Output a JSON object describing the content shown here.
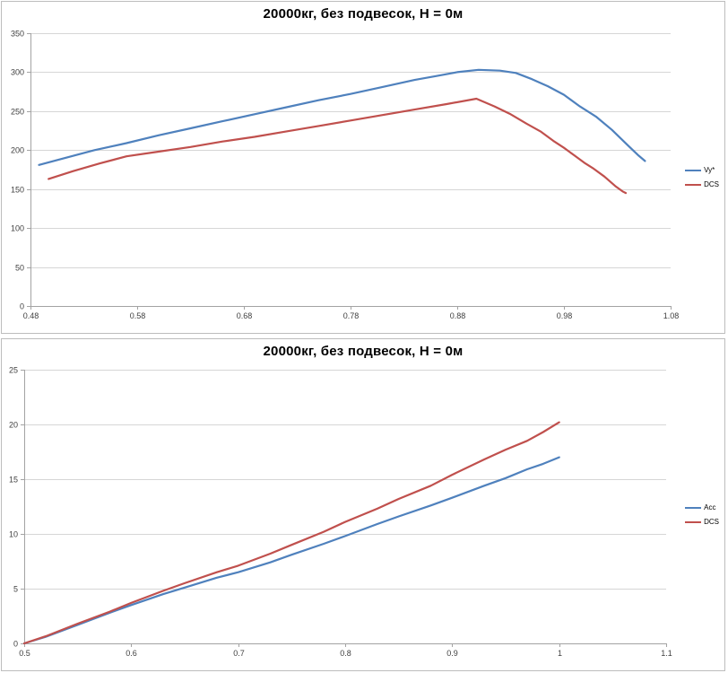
{
  "styles": {
    "gridline": "#d6d6d6",
    "axis": "#a3a3a3",
    "tick_text": "#404040",
    "series_blue": "#4F81BD",
    "series_red": "#C0504D",
    "panel_border": "#bdbdbd",
    "background": "#ffffff"
  },
  "chart_data": [
    {
      "type": "line",
      "title": "20000кг, без подвесок, H = 0м",
      "xlabel": "",
      "ylabel": "",
      "xlim": [
        0.48,
        1.08
      ],
      "ylim": [
        0,
        350
      ],
      "grid": "horizontal",
      "legend_position": "right",
      "xtick_values": [
        0.48,
        0.58,
        0.68,
        0.78,
        0.88,
        0.98,
        1.08
      ],
      "xtick_labels": [
        "0.48",
        "0.58",
        "0.68",
        "0.78",
        "0.88",
        "0.98",
        "1.08"
      ],
      "ytick_values": [
        0,
        50,
        100,
        150,
        200,
        250,
        300,
        350
      ],
      "ytick_labels": [
        "0",
        "50",
        "100",
        "150",
        "200",
        "250",
        "300",
        "350"
      ],
      "series": [
        {
          "name": "Vy*",
          "color": "#4F81BD",
          "points": [
            [
              0.488,
              181
            ],
            [
              0.51,
              189
            ],
            [
              0.54,
              200
            ],
            [
              0.57,
              209
            ],
            [
              0.6,
              219
            ],
            [
              0.63,
              228
            ],
            [
              0.66,
              237
            ],
            [
              0.69,
              246
            ],
            [
              0.72,
              255
            ],
            [
              0.75,
              264
            ],
            [
              0.78,
              272
            ],
            [
              0.81,
              281
            ],
            [
              0.84,
              290
            ],
            [
              0.86,
              295
            ],
            [
              0.88,
              300
            ],
            [
              0.9,
              303
            ],
            [
              0.92,
              302
            ],
            [
              0.935,
              299
            ],
            [
              0.95,
              291
            ],
            [
              0.965,
              282
            ],
            [
              0.98,
              271
            ],
            [
              0.995,
              256
            ],
            [
              1.01,
              243
            ],
            [
              1.025,
              226
            ],
            [
              1.04,
              206
            ],
            [
              1.05,
              193
            ],
            [
              1.056,
              186
            ]
          ]
        },
        {
          "name": "DCS",
          "color": "#C0504D",
          "points": [
            [
              0.497,
              163
            ],
            [
              0.52,
              173
            ],
            [
              0.545,
              183
            ],
            [
              0.57,
              192
            ],
            [
              0.6,
              198
            ],
            [
              0.63,
              204
            ],
            [
              0.66,
              211
            ],
            [
              0.69,
              217
            ],
            [
              0.72,
              224
            ],
            [
              0.75,
              231
            ],
            [
              0.78,
              238
            ],
            [
              0.81,
              245
            ],
            [
              0.84,
              252
            ],
            [
              0.87,
              259
            ],
            [
              0.898,
              266
            ],
            [
              0.915,
              256
            ],
            [
              0.93,
              246
            ],
            [
              0.945,
              234
            ],
            [
              0.958,
              224
            ],
            [
              0.97,
              212
            ],
            [
              0.98,
              203
            ],
            [
              0.99,
              193
            ],
            [
              1.0,
              183
            ],
            [
              1.008,
              176
            ],
            [
              1.018,
              166
            ],
            [
              1.028,
              154
            ],
            [
              1.035,
              147
            ],
            [
              1.038,
              145
            ]
          ]
        }
      ]
    },
    {
      "type": "line",
      "title": "20000кг, без подвесок, H = 0м",
      "xlabel": "",
      "ylabel": "",
      "xlim": [
        0.5,
        1.1
      ],
      "ylim": [
        0,
        25
      ],
      "grid": "horizontal",
      "legend_position": "right",
      "xtick_values": [
        0.5,
        0.6,
        0.7,
        0.8,
        0.9,
        1.0,
        1.1
      ],
      "xtick_labels": [
        "0.5",
        "0.6",
        "0.7",
        "0.8",
        "0.9",
        "1",
        "1.1"
      ],
      "ytick_values": [
        0,
        5,
        10,
        15,
        20,
        25
      ],
      "ytick_labels": [
        "0",
        "5",
        "10",
        "15",
        "20",
        "25"
      ],
      "series": [
        {
          "name": "Acc",
          "color": "#4F81BD",
          "points": [
            [
              0.5,
              0
            ],
            [
              0.52,
              0.6
            ],
            [
              0.55,
              1.7
            ],
            [
              0.58,
              2.8
            ],
            [
              0.6,
              3.5
            ],
            [
              0.63,
              4.5
            ],
            [
              0.65,
              5.1
            ],
            [
              0.68,
              6.0
            ],
            [
              0.7,
              6.5
            ],
            [
              0.73,
              7.4
            ],
            [
              0.75,
              8.1
            ],
            [
              0.78,
              9.1
            ],
            [
              0.8,
              9.8
            ],
            [
              0.83,
              10.9
            ],
            [
              0.85,
              11.6
            ],
            [
              0.88,
              12.6
            ],
            [
              0.9,
              13.3
            ],
            [
              0.93,
              14.4
            ],
            [
              0.95,
              15.1
            ],
            [
              0.97,
              15.9
            ],
            [
              0.985,
              16.4
            ],
            [
              1.0,
              17.0
            ]
          ]
        },
        {
          "name": "DCS",
          "color": "#C0504D",
          "points": [
            [
              0.5,
              0
            ],
            [
              0.52,
              0.65
            ],
            [
              0.55,
              1.8
            ],
            [
              0.58,
              2.9
            ],
            [
              0.6,
              3.7
            ],
            [
              0.63,
              4.8
            ],
            [
              0.65,
              5.5
            ],
            [
              0.68,
              6.5
            ],
            [
              0.7,
              7.1
            ],
            [
              0.73,
              8.2
            ],
            [
              0.75,
              9.0
            ],
            [
              0.78,
              10.2
            ],
            [
              0.8,
              11.1
            ],
            [
              0.83,
              12.3
            ],
            [
              0.85,
              13.2
            ],
            [
              0.88,
              14.4
            ],
            [
              0.9,
              15.4
            ],
            [
              0.93,
              16.8
            ],
            [
              0.95,
              17.7
            ],
            [
              0.97,
              18.5
            ],
            [
              0.985,
              19.3
            ],
            [
              1.0,
              20.2
            ]
          ]
        }
      ]
    }
  ]
}
